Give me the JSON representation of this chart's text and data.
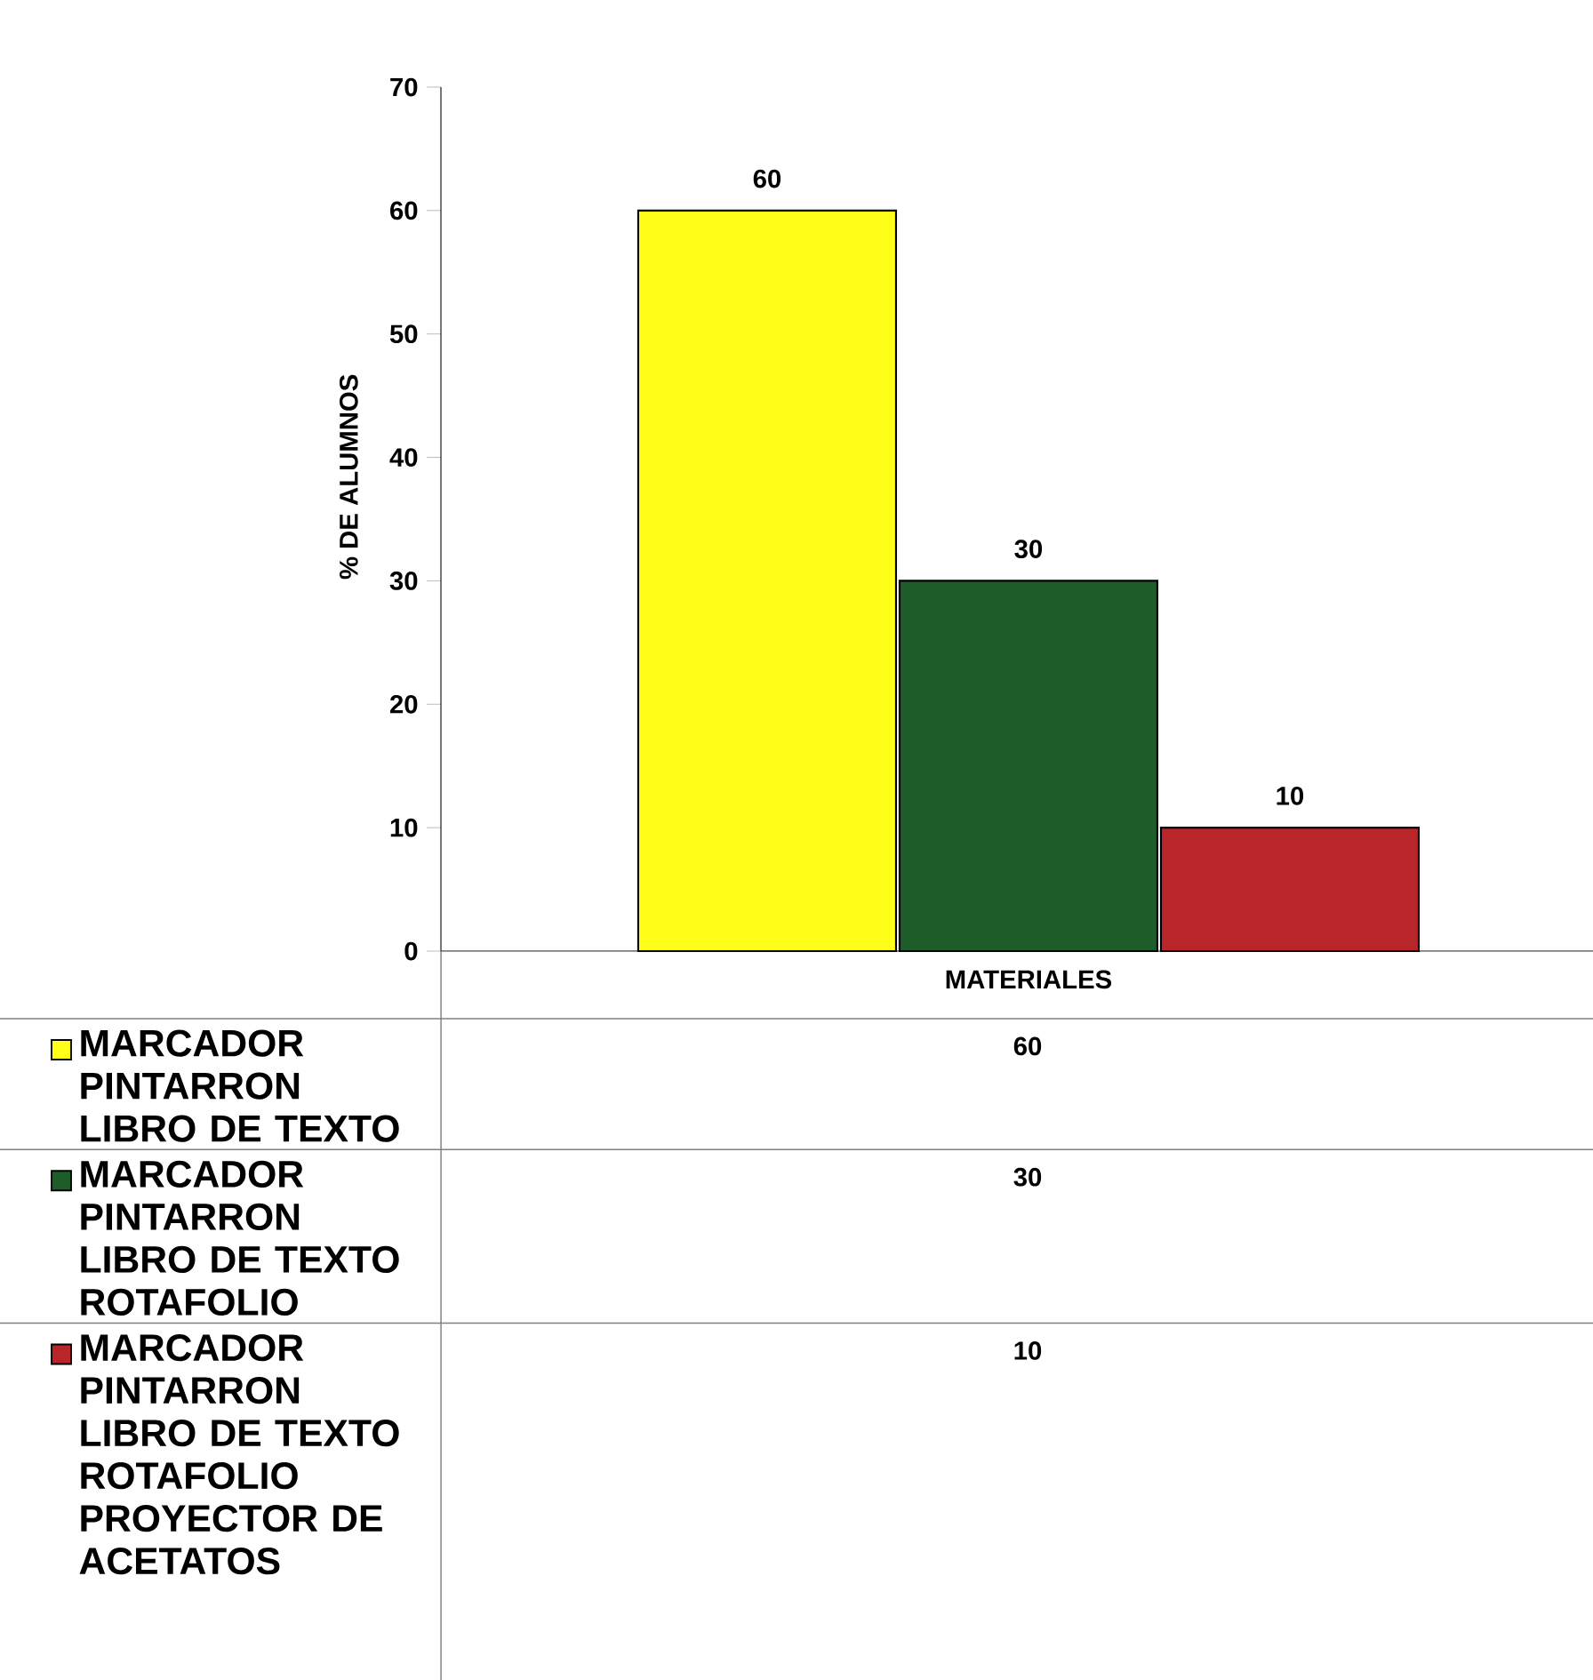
{
  "chart_data": {
    "type": "bar",
    "ylabel": "% DE ALUMNOS",
    "categories": [
      "MATERIALES"
    ],
    "series": [
      {
        "name": "MARCADOR PINTARRON LIBRO DE TEXTO",
        "color": "#ffff1a",
        "values": [
          60
        ],
        "value_labels": [
          "60"
        ]
      },
      {
        "name": "MARCADOR PINTARRON LIBRO DE TEXTO ROTAFOLIO",
        "color": "#1e5c2a",
        "values": [
          30
        ],
        "value_labels": [
          "30"
        ]
      },
      {
        "name": "MARCADOR PINTARRON LIBRO DE TEXTO ROTAFOLIO PROYECTOR DE ACETATOS",
        "color": "#b8262a",
        "values": [
          10
        ],
        "value_labels": [
          "10"
        ]
      }
    ],
    "ylim": [
      0,
      70
    ],
    "yticks": [
      0,
      10,
      20,
      30,
      40,
      50,
      60,
      70
    ],
    "annotations": [
      "60",
      "30",
      "10"
    ],
    "legend": "bottom left"
  }
}
